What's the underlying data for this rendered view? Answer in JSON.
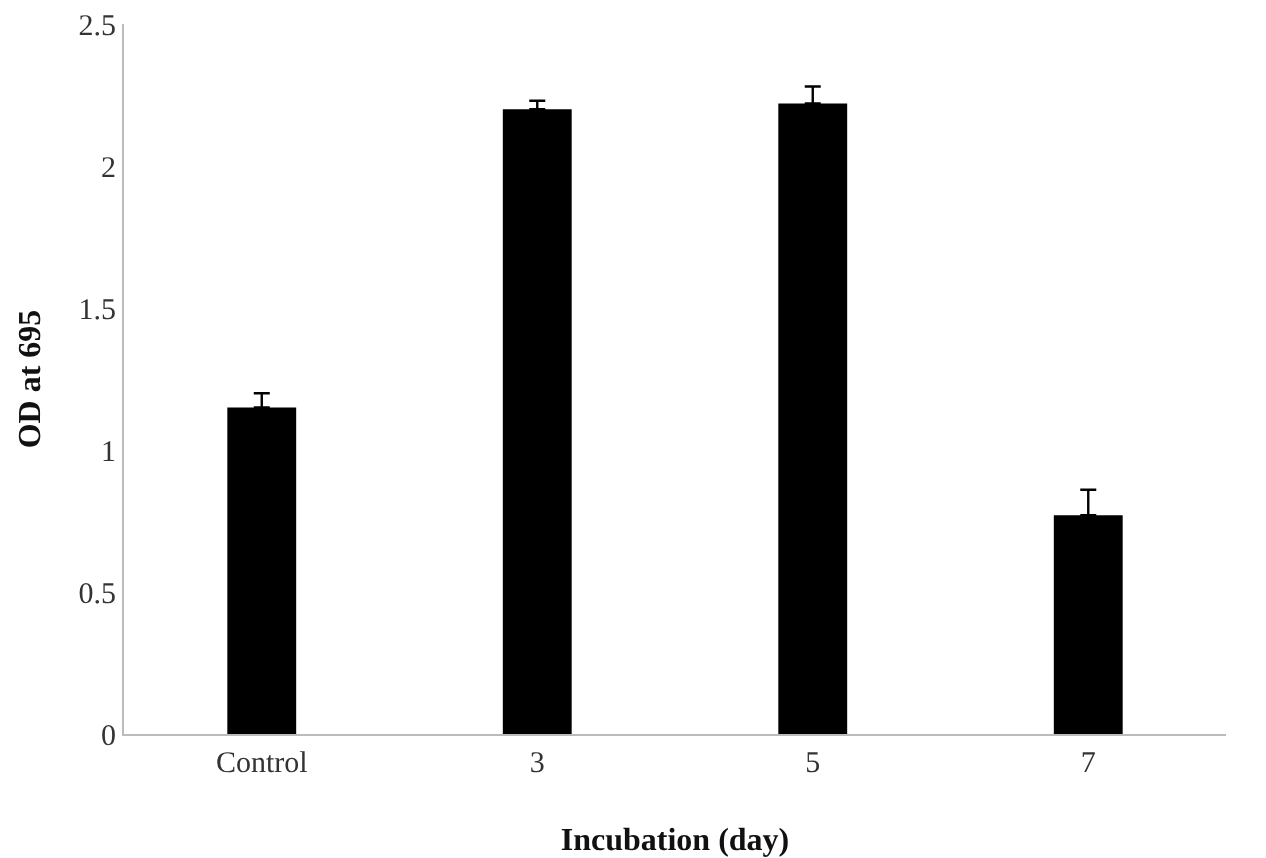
{
  "chart_data": {
    "type": "bar",
    "xlabel": "Incubation (day)",
    "ylabel": "OD at 695",
    "categories": [
      "Control",
      "3",
      "5",
      "7"
    ],
    "values": [
      1.15,
      2.2,
      2.22,
      0.77
    ],
    "errors": [
      [
        1.15,
        1.2
      ],
      [
        2.2,
        2.23
      ],
      [
        2.22,
        2.28
      ],
      [
        0.77,
        0.86
      ]
    ],
    "color": "#000000",
    "ylim": [
      0,
      2.5
    ],
    "yticks": [
      0,
      0.5,
      1,
      1.5,
      2,
      2.5
    ],
    "grid": false
  }
}
